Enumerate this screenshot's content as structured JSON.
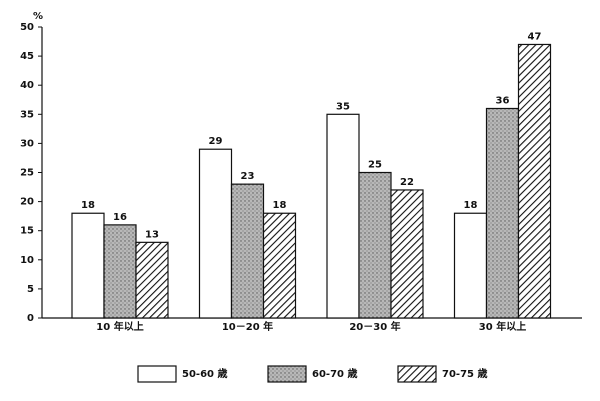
{
  "chart_data": {
    "type": "bar",
    "y_label": "%",
    "categories": [
      "10 年以上",
      "10－20 年",
      "20－30 年",
      "30 年以上"
    ],
    "series": [
      {
        "name": "50-60 歳",
        "color": "#ffffff",
        "pattern": "none",
        "values": [
          18,
          29,
          35,
          18
        ]
      },
      {
        "name": "60-70 歳",
        "color": "#b8b8b8",
        "pattern": "stipple",
        "values": [
          16,
          23,
          25,
          36
        ]
      },
      {
        "name": "70-75 歳",
        "color": "#ffffff",
        "pattern": "hatch",
        "values": [
          13,
          18,
          22,
          47
        ]
      }
    ],
    "ylim": [
      0,
      50
    ],
    "yticks": [
      0,
      5,
      10,
      15,
      20,
      25,
      30,
      35,
      40,
      45,
      50
    ],
    "grid": false,
    "legend": "bottom"
  }
}
